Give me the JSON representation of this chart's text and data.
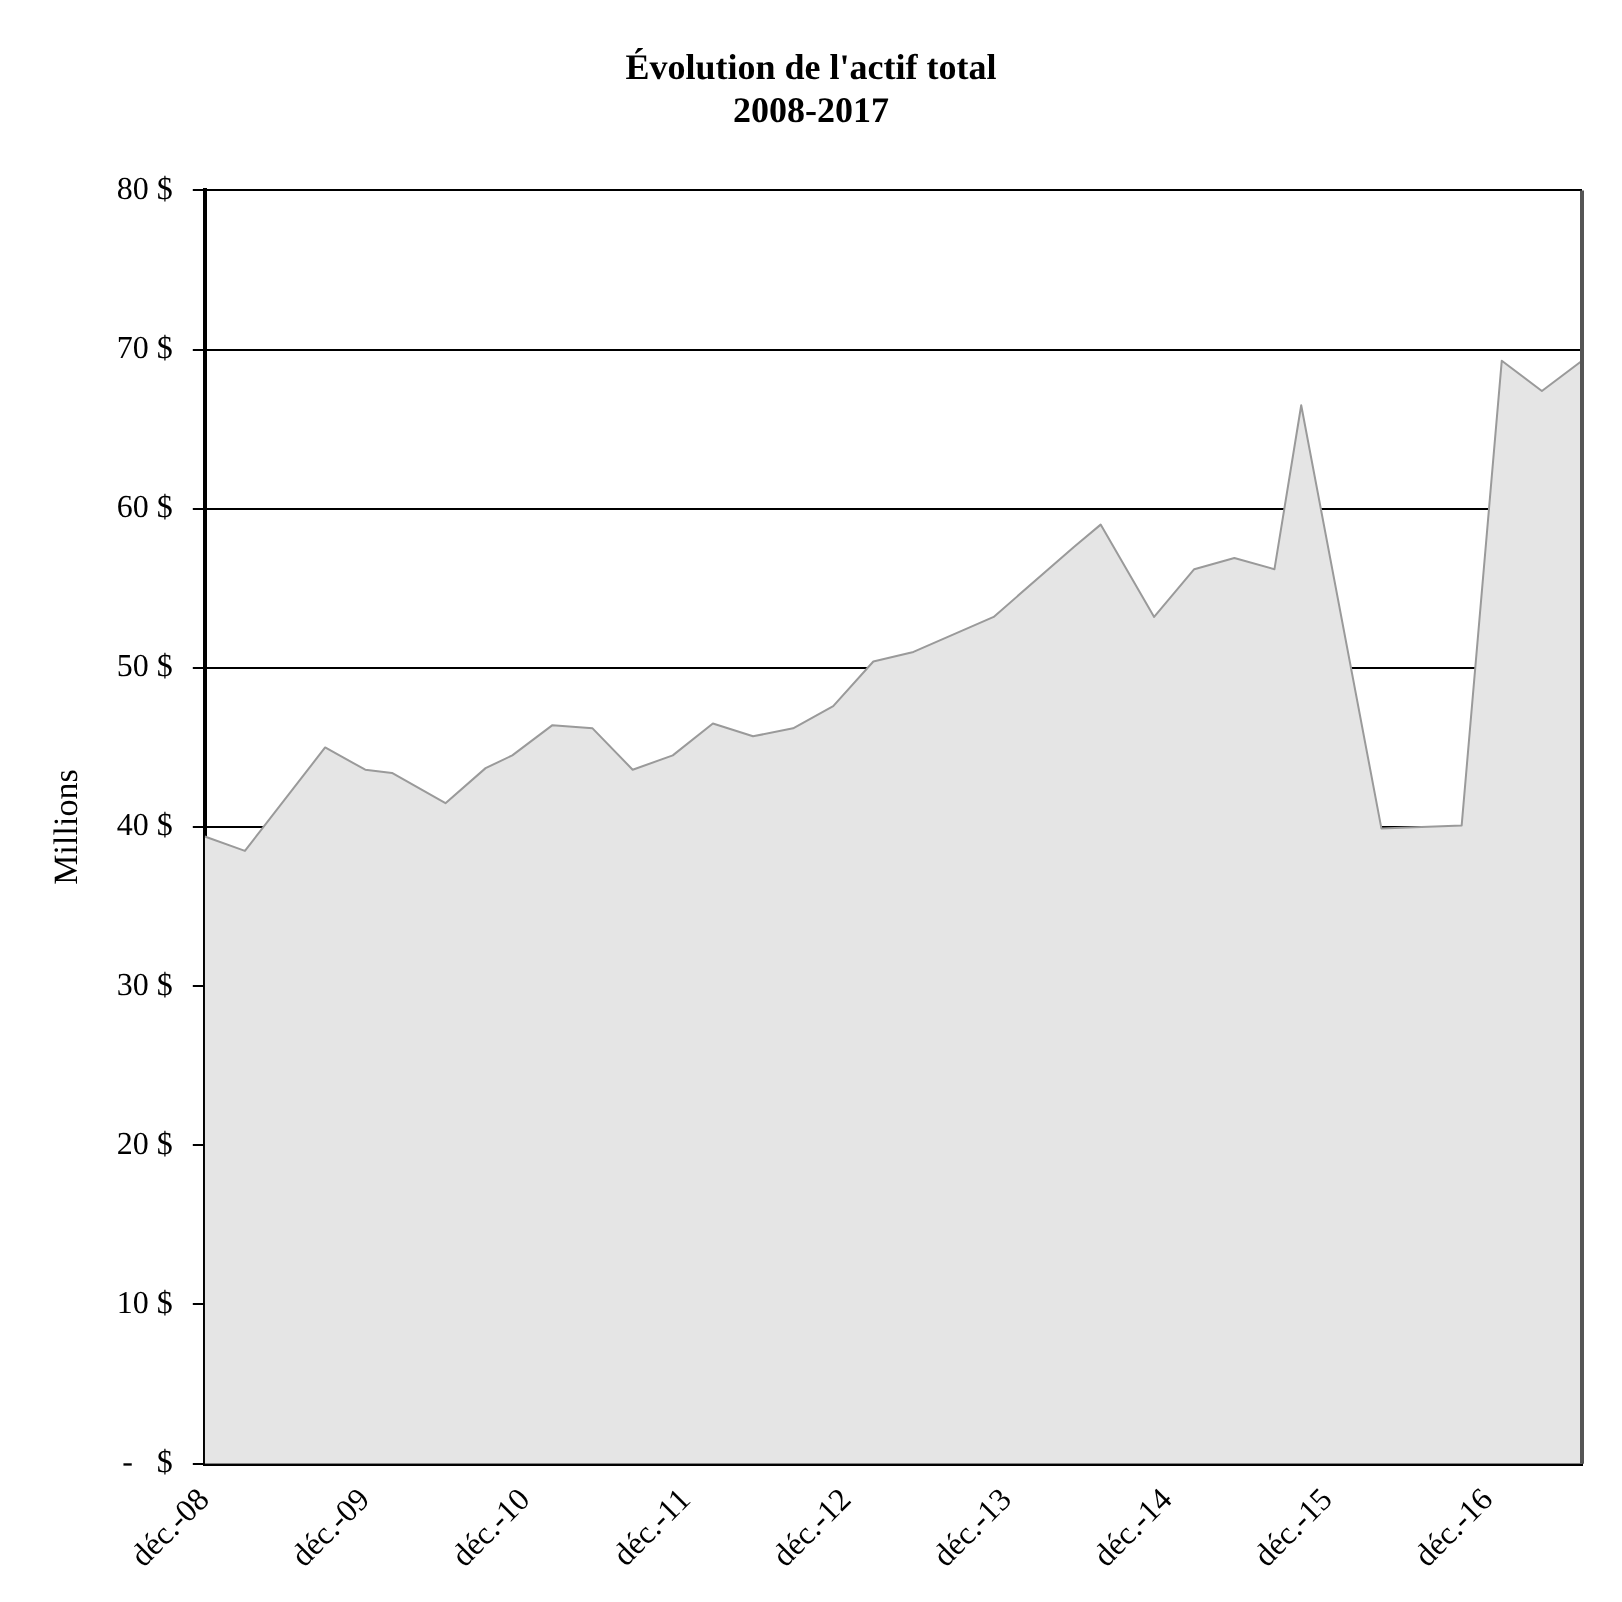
{
  "chart_data": {
    "type": "area",
    "title": "Évolution de l'actif total",
    "subtitle": "2008-2017",
    "ylabel": "Millions",
    "x": [
      "2008-12",
      "2009-03",
      "2009-09",
      "2009-12",
      "2010-02",
      "2010-06",
      "2010-09",
      "2010-11",
      "2011-02",
      "2011-05",
      "2011-08",
      "2011-11",
      "2012-02",
      "2012-05",
      "2012-08",
      "2012-11",
      "2013-02",
      "2013-05",
      "2013-11",
      "2014-05",
      "2014-07",
      "2014-11",
      "2015-02",
      "2015-05",
      "2015-08",
      "2015-10",
      "2016-04",
      "2016-10",
      "2017-01",
      "2017-04",
      "2017-07"
    ],
    "series": [
      {
        "color": "#e5e5e5",
        "values": [
          39.4,
          38.5,
          45.0,
          43.6,
          43.4,
          41.5,
          43.7,
          44.5,
          46.4,
          46.2,
          43.6,
          44.5,
          46.5,
          45.7,
          46.2,
          47.6,
          50.4,
          51.0,
          53.2,
          57.6,
          59.0,
          53.2,
          56.2,
          56.9,
          56.2,
          66.5,
          39.9,
          40.1,
          69.3,
          67.4,
          69.3
        ]
      }
    ],
    "xlim": [
      "2008-12",
      "2017-07"
    ],
    "xticks": [
      {
        "value": "2008-12",
        "label": "déc.-08"
      },
      {
        "value": "2009-12",
        "label": "déc.-09"
      },
      {
        "value": "2010-12",
        "label": "déc.-10"
      },
      {
        "value": "2011-12",
        "label": "déc.-11"
      },
      {
        "value": "2012-12",
        "label": "déc.-12"
      },
      {
        "value": "2013-12",
        "label": "déc.-13"
      },
      {
        "value": "2014-12",
        "label": "déc.-14"
      },
      {
        "value": "2015-12",
        "label": "déc.-15"
      },
      {
        "value": "2016-12",
        "label": "déc.-16"
      }
    ],
    "ylim": [
      0,
      80
    ],
    "yticks": [
      {
        "value": 0,
        "label": "-   $"
      },
      {
        "value": 10,
        "label": "10 $"
      },
      {
        "value": 20,
        "label": "20 $"
      },
      {
        "value": 30,
        "label": "30 $"
      },
      {
        "value": 40,
        "label": "40 $"
      },
      {
        "value": 50,
        "label": "50 $"
      },
      {
        "value": 60,
        "label": "60 $"
      },
      {
        "value": 70,
        "label": "70 $"
      },
      {
        "value": 80,
        "label": "80 $"
      }
    ],
    "grid": "y",
    "legend": false
  }
}
